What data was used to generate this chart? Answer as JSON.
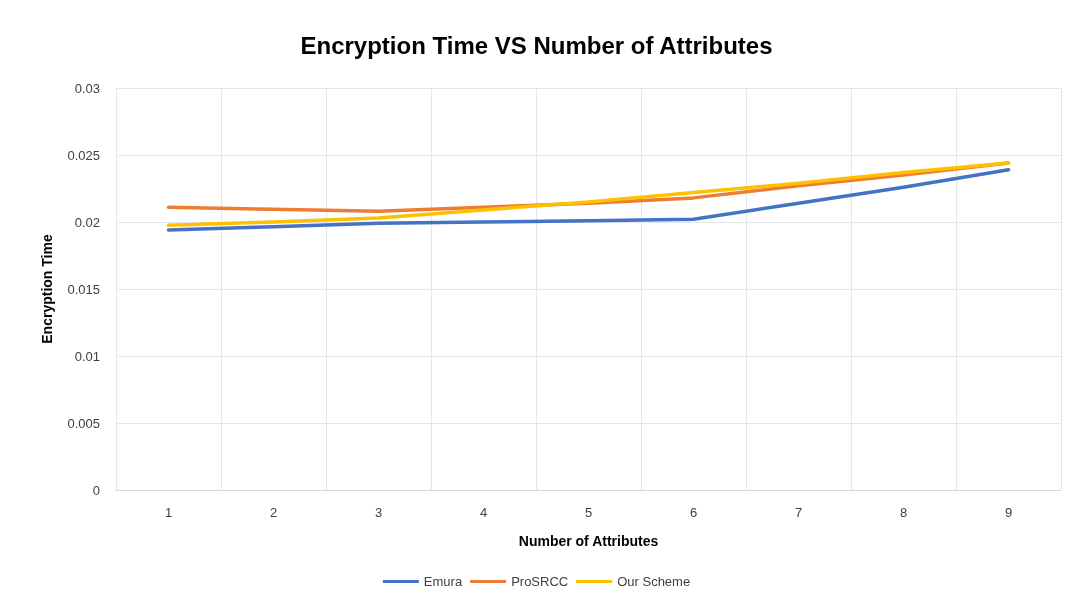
{
  "chart_data": {
    "type": "line",
    "title": "Encryption Time VS Number of Attributes",
    "xlabel": "Number of Attributes",
    "ylabel": "Encryption Time",
    "categories": [
      "1",
      "2",
      "3",
      "4",
      "5",
      "6",
      "7",
      "8",
      "9"
    ],
    "series": [
      {
        "name": "Emura",
        "color": "#4472c4",
        "values": [
          0.0194,
          0.01965,
          0.0199,
          0.02,
          0.0201,
          0.0202,
          0.0214,
          0.0226,
          0.0239
        ]
      },
      {
        "name": "ProSRCC",
        "color": "#ed7d31",
        "values": [
          0.0211,
          0.02095,
          0.0208,
          0.0211,
          0.0214,
          0.0218,
          0.0227,
          0.0235,
          0.0244
        ]
      },
      {
        "name": "Our Scheme",
        "color": "#ffc000",
        "values": [
          0.01975,
          0.02,
          0.0203,
          0.0209,
          0.0215,
          0.0222,
          0.0229,
          0.0237,
          0.0244
        ]
      }
    ],
    "ylim": [
      0,
      0.03
    ],
    "yticks": [
      0,
      0.005,
      0.01,
      0.015,
      0.02,
      0.025,
      0.03
    ],
    "grid": true,
    "legend": "bottom",
    "marker": "none",
    "line_style": "solid"
  }
}
